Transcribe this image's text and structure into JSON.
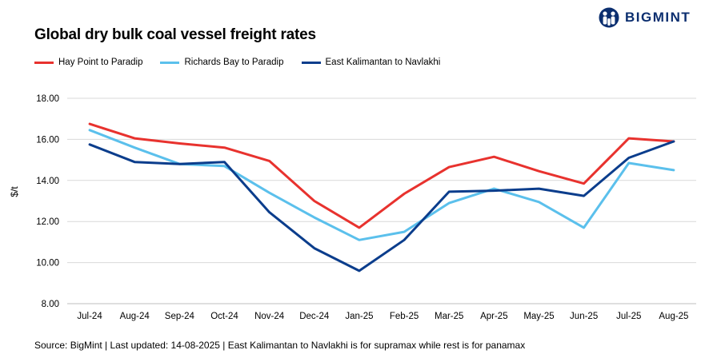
{
  "logo": {
    "text": "BIGMINT"
  },
  "source": "Source: BigMint | Last updated: 14-08-2025 | East Kalimantan to Navlakhi is for supramax while rest is for panamax",
  "chart_data": {
    "type": "line",
    "title": "Global dry bulk coal vessel freight rates",
    "ylabel": "$/t",
    "xlabel": "",
    "ylim": [
      8,
      18
    ],
    "yticks": [
      "8.00",
      "10.00",
      "12.00",
      "14.00",
      "16.00",
      "18.00"
    ],
    "grid": "horizontal",
    "legend_position": "top-left",
    "categories": [
      "Jul-24",
      "Aug-24",
      "Sep-24",
      "Oct-24",
      "Nov-24",
      "Dec-24",
      "Jan-25",
      "Feb-25",
      "Mar-25",
      "Apr-25",
      "May-25",
      "Jun-25",
      "Jul-25",
      "Aug-25"
    ],
    "series": [
      {
        "name": "Hay Point to Paradip",
        "color": "#e8322e",
        "values": [
          16.75,
          16.05,
          15.8,
          15.6,
          14.95,
          13.0,
          11.7,
          13.35,
          14.65,
          15.15,
          14.45,
          13.85,
          16.05,
          15.9
        ]
      },
      {
        "name": "Richards Bay to Paradip",
        "color": "#5bc0ec",
        "values": [
          16.45,
          15.6,
          14.8,
          14.7,
          13.4,
          12.2,
          11.1,
          11.5,
          12.9,
          13.6,
          12.95,
          11.7,
          14.85,
          14.5
        ]
      },
      {
        "name": "East Kalimantan to Navlakhi",
        "color": "#0b3d8c",
        "values": [
          15.75,
          14.9,
          14.8,
          14.9,
          12.45,
          10.7,
          9.6,
          11.1,
          13.45,
          13.5,
          13.6,
          13.25,
          15.1,
          15.9
        ]
      }
    ]
  }
}
